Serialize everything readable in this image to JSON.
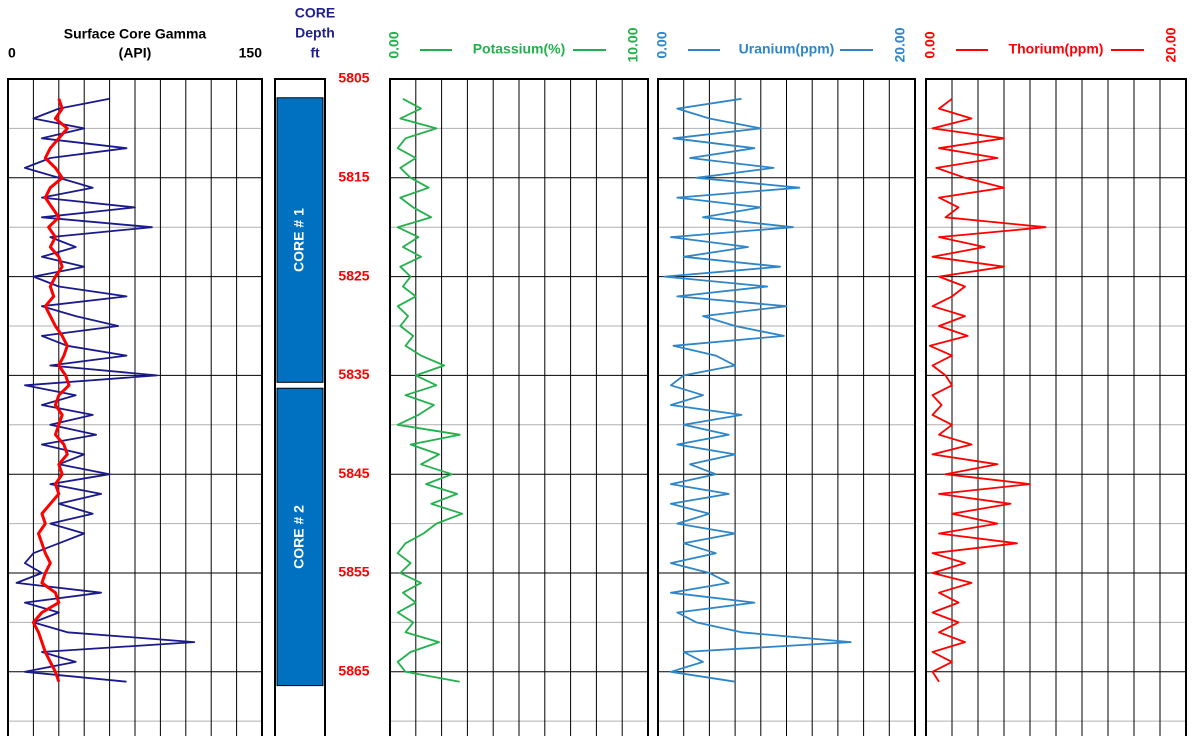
{
  "chart_data": {
    "type": "well-log",
    "depth": [
      5807,
      5808,
      5809,
      5810,
      5811,
      5812,
      5813,
      5814,
      5815,
      5816,
      5817,
      5818,
      5819,
      5820,
      5821,
      5822,
      5823,
      5824,
      5825,
      5826,
      5827,
      5828,
      5829,
      5830,
      5831,
      5832,
      5833,
      5834,
      5835,
      5836,
      5837,
      5838,
      5839,
      5840,
      5841,
      5842,
      5843,
      5844,
      5845,
      5846,
      5847,
      5848,
      5849,
      5850,
      5851,
      5852,
      5853,
      5854,
      5855,
      5856,
      5857,
      5858,
      5859,
      5860,
      5861,
      5862,
      5863,
      5864,
      5865,
      5866
    ],
    "ylim": [
      5805,
      5871.5
    ],
    "yticks": [
      5805,
      5815,
      5825,
      5835,
      5845,
      5855,
      5865
    ],
    "yminor": [
      5810,
      5820,
      5830,
      5840,
      5850,
      5860,
      5870
    ],
    "depth_header": [
      "CORE",
      "Depth",
      "ft"
    ],
    "cores": [
      {
        "label": "CORE # 1",
        "top": 5806.9,
        "base": 5835.7
      },
      {
        "label": "CORE # 2",
        "top": 5836.3,
        "base": 5866.4
      }
    ],
    "tracks": [
      {
        "title": "Surface Core Gamma",
        "xlabel": "(API)",
        "xlim": [
          0,
          150
        ],
        "xticks": [
          0,
          150
        ],
        "xgrid": [
          15,
          30,
          45,
          60,
          75,
          90,
          105,
          120,
          135
        ],
        "series": [
          {
            "color": "#1a1a8c",
            "values": [
              60,
              30,
              15,
              45,
              20,
              70,
              25,
              10,
              30,
              50,
              20,
              75,
              20,
              85,
              25,
              40,
              20,
              45,
              15,
              30,
              70,
              20,
              40,
              65,
              20,
              35,
              70,
              25,
              88,
              10,
              40,
              20,
              50,
              25,
              52,
              20,
              45,
              30,
              60,
              25,
              55,
              30,
              50,
              25,
              45,
              30,
              15,
              10,
              20,
              5,
              55,
              10,
              30,
              15,
              35,
              110,
              20,
              40,
              10,
              70
            ]
          },
          {
            "color": "#ff0000",
            "values": [
              30,
              32,
              28,
              35,
              30,
              25,
              22,
              28,
              32,
              25,
              22,
              26,
              30,
              24,
              28,
              25,
              30,
              32,
              28,
              25,
              27,
              22,
              25,
              28,
              32,
              35,
              33,
              30,
              34,
              36,
              30,
              28,
              32,
              30,
              28,
              33,
              35,
              30,
              32,
              28,
              30,
              25,
              20,
              22,
              18,
              20,
              22,
              25,
              22,
              20,
              28,
              30,
              20,
              15,
              18,
              20,
              22,
              25,
              28,
              30
            ]
          }
        ]
      },
      {
        "xlim": [
          0,
          10
        ],
        "xticks": [
          {
            "value": 0,
            "label": "0.00"
          },
          {
            "value": 10,
            "label": "10.00"
          }
        ],
        "xgrid": [
          1,
          2,
          3,
          4,
          5,
          6,
          7,
          8,
          9
        ],
        "series": [
          {
            "name": "Potassium(%)",
            "color": "#22b14c",
            "values": [
              0.5,
              1.2,
              0.4,
              1.8,
              0.6,
              0.3,
              1.0,
              0.4,
              0.8,
              1.5,
              0.4,
              0.9,
              1.6,
              0.3,
              1.1,
              0.5,
              1.2,
              0.4,
              0.8,
              0.5,
              1.0,
              0.3,
              0.7,
              0.4,
              0.9,
              0.6,
              1.2,
              2.1,
              1.0,
              1.8,
              0.6,
              1.7,
              1.1,
              0.3,
              2.7,
              0.8,
              1.9,
              1.2,
              2.4,
              1.4,
              2.6,
              1.6,
              2.8,
              1.8,
              1.3,
              0.6,
              0.3,
              0.8,
              0.4,
              1.2,
              0.5,
              1.0,
              0.3,
              0.9,
              0.6,
              1.9,
              0.8,
              0.3,
              0.6,
              2.7
            ]
          }
        ]
      },
      {
        "xlim": [
          0,
          20
        ],
        "xticks": [
          {
            "value": 0,
            "label": "0.00"
          },
          {
            "value": 20,
            "label": "20.00"
          }
        ],
        "xgrid": [
          2,
          4,
          6,
          8,
          10,
          12,
          14,
          16,
          18
        ],
        "series": [
          {
            "name": "Uranium(ppm)",
            "color": "#2e86c8",
            "values": [
              6.5,
              1.5,
              4.0,
              8.0,
              1.2,
              7.5,
              2.5,
              9.0,
              3.0,
              11.0,
              1.5,
              8.0,
              3.5,
              10.5,
              1.0,
              7.0,
              2.0,
              9.5,
              0.5,
              8.5,
              1.5,
              10.0,
              3.5,
              6.0,
              9.8,
              1.2,
              4.5,
              6.0,
              2.0,
              1.0,
              3.5,
              1.0,
              6.5,
              2.0,
              5.5,
              1.5,
              6.0,
              2.5,
              4.5,
              1.0,
              5.5,
              1.0,
              4.0,
              1.5,
              6.0,
              2.0,
              4.5,
              1.0,
              4.0,
              5.5,
              1.0,
              7.5,
              1.5,
              3.0,
              6.5,
              15.0,
              2.0,
              3.5,
              1.0,
              6.0
            ]
          }
        ]
      },
      {
        "xlim": [
          0,
          20
        ],
        "xticks": [
          {
            "value": 0,
            "label": "0.00"
          },
          {
            "value": 20,
            "label": "20.00"
          }
        ],
        "xgrid": [
          2,
          4,
          6,
          8,
          10,
          12,
          14,
          16,
          18
        ],
        "series": [
          {
            "name": "Thorium(ppm)",
            "color": "#ff0000",
            "values": [
              2.0,
              1.0,
              3.5,
              0.5,
              6.0,
              1.0,
              5.5,
              0.8,
              3.0,
              6.0,
              1.0,
              2.5,
              1.5,
              9.2,
              1.0,
              4.5,
              0.5,
              6.0,
              1.0,
              3.0,
              2.0,
              0.5,
              3.0,
              1.0,
              3.2,
              0.3,
              2.0,
              0.5,
              1.5,
              2.0,
              0.5,
              1.2,
              0.5,
              2.0,
              1.0,
              3.5,
              0.5,
              5.5,
              1.5,
              8.0,
              1.0,
              6.5,
              2.0,
              5.5,
              1.0,
              7.0,
              0.5,
              3.0,
              0.5,
              3.5,
              1.0,
              2.5,
              0.5,
              2.5,
              1.0,
              3.0,
              0.5,
              2.0,
              0.5,
              1.0
            ]
          }
        ]
      }
    ]
  }
}
